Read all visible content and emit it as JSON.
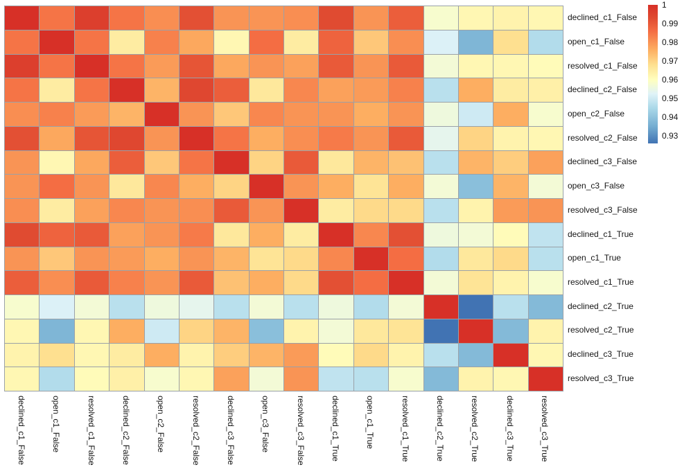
{
  "chart_data": {
    "type": "heatmap",
    "title": "",
    "labels": [
      "declined_c1_False",
      "open_c1_False",
      "resolved_c1_False",
      "declined_c2_False",
      "open_c2_False",
      "resolved_c2_False",
      "declined_c3_False",
      "open_c3_False",
      "resolved_c3_False",
      "declined_c1_True",
      "open_c1_True",
      "resolved_c1_True",
      "declined_c2_True",
      "resolved_c2_True",
      "declined_c3_True",
      "resolved_c3_True"
    ],
    "matrix": [
      [
        1.0,
        0.985,
        0.996,
        0.985,
        0.981,
        0.992,
        0.98,
        0.98,
        0.981,
        0.993,
        0.98,
        0.989,
        0.958,
        0.962,
        0.963,
        0.962
      ],
      [
        0.985,
        1.0,
        0.985,
        0.965,
        0.983,
        0.977,
        0.962,
        0.986,
        0.965,
        0.988,
        0.972,
        0.981,
        0.952,
        0.937,
        0.968,
        0.946
      ],
      [
        0.996,
        0.985,
        1.0,
        0.985,
        0.979,
        0.991,
        0.977,
        0.98,
        0.978,
        0.99,
        0.98,
        0.99,
        0.957,
        0.962,
        0.962,
        0.961
      ],
      [
        0.985,
        0.965,
        0.985,
        1.0,
        0.975,
        0.994,
        0.989,
        0.966,
        0.982,
        0.978,
        0.979,
        0.983,
        0.947,
        0.976,
        0.965,
        0.964
      ],
      [
        0.981,
        0.983,
        0.979,
        0.975,
        1.0,
        0.98,
        0.972,
        0.982,
        0.98,
        0.98,
        0.976,
        0.98,
        0.956,
        0.95,
        0.976,
        0.958
      ],
      [
        0.992,
        0.977,
        0.991,
        0.994,
        0.98,
        1.0,
        0.985,
        0.976,
        0.981,
        0.984,
        0.98,
        0.99,
        0.954,
        0.97,
        0.963,
        0.962
      ],
      [
        0.98,
        0.962,
        0.977,
        0.989,
        0.972,
        0.985,
        1.0,
        0.97,
        0.99,
        0.966,
        0.975,
        0.973,
        0.947,
        0.975,
        0.971,
        0.978
      ],
      [
        0.98,
        0.986,
        0.98,
        0.966,
        0.982,
        0.976,
        0.97,
        1.0,
        0.98,
        0.976,
        0.967,
        0.976,
        0.957,
        0.939,
        0.975,
        0.957
      ],
      [
        0.981,
        0.965,
        0.978,
        0.982,
        0.98,
        0.981,
        0.99,
        0.98,
        1.0,
        0.965,
        0.969,
        0.969,
        0.947,
        0.963,
        0.979,
        0.98
      ],
      [
        0.993,
        0.988,
        0.99,
        0.978,
        0.98,
        0.984,
        0.966,
        0.976,
        0.965,
        1.0,
        0.982,
        0.992,
        0.956,
        0.957,
        0.961,
        0.948
      ],
      [
        0.98,
        0.972,
        0.98,
        0.979,
        0.976,
        0.98,
        0.975,
        0.967,
        0.969,
        0.982,
        1.0,
        0.986,
        0.946,
        0.966,
        0.969,
        0.947
      ],
      [
        0.989,
        0.981,
        0.99,
        0.983,
        0.98,
        0.99,
        0.973,
        0.976,
        0.969,
        0.992,
        0.986,
        1.0,
        0.957,
        0.967,
        0.963,
        0.958
      ],
      [
        0.958,
        0.952,
        0.957,
        0.947,
        0.956,
        0.954,
        0.947,
        0.957,
        0.947,
        0.956,
        0.946,
        0.957,
        1.0,
        0.926,
        0.947,
        0.938
      ],
      [
        0.962,
        0.937,
        0.962,
        0.976,
        0.95,
        0.97,
        0.975,
        0.939,
        0.963,
        0.957,
        0.966,
        0.967,
        0.926,
        1.0,
        0.938,
        0.963
      ],
      [
        0.963,
        0.968,
        0.962,
        0.965,
        0.976,
        0.963,
        0.971,
        0.975,
        0.979,
        0.961,
        0.969,
        0.963,
        0.947,
        0.938,
        1.0,
        0.962
      ],
      [
        0.962,
        0.946,
        0.961,
        0.964,
        0.958,
        0.962,
        0.978,
        0.957,
        0.98,
        0.948,
        0.947,
        0.958,
        0.938,
        0.963,
        0.962,
        1.0
      ]
    ],
    "colorbar": {
      "tick_labels": [
        "1",
        "0.99",
        "0.98",
        "0.97",
        "0.96",
        "0.95",
        "0.94",
        "0.93"
      ],
      "tick_values": [
        1,
        0.99,
        0.98,
        0.97,
        0.96,
        0.95,
        0.94,
        0.93
      ],
      "vmin": 0.926,
      "vmax": 1.0
    },
    "colormap_stops": [
      [
        0.926,
        "#4173b3"
      ],
      [
        0.935,
        "#74add1"
      ],
      [
        0.945,
        "#abd9e9"
      ],
      [
        0.9525,
        "#e0f3f8"
      ],
      [
        0.96,
        "#ffffbf"
      ],
      [
        0.968,
        "#fee090"
      ],
      [
        0.976,
        "#fdae61"
      ],
      [
        0.986,
        "#f46d43"
      ],
      [
        0.993,
        "#e04b31"
      ],
      [
        1.0,
        "#d73027"
      ]
    ],
    "grid_line_color": "#9aa1a8",
    "background_color": "#ffffff",
    "legend_position": "right",
    "axis": {
      "x_tick_rotation_deg": 90,
      "y_ticks_side": "right"
    }
  }
}
